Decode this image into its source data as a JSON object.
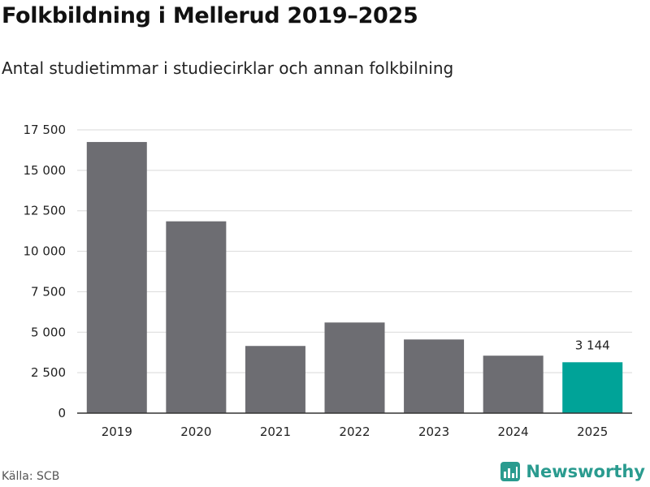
{
  "header": {
    "title": "Folkbildning i Mellerud 2019–2025",
    "subtitle": "Antal studietimmar i studiecirklar och annan folkbilning"
  },
  "footer": {
    "source": "Källa: SCB",
    "brand": "Newsworthy"
  },
  "colors": {
    "bar": "#6d6d72",
    "highlight": "#00a398",
    "grid": "#d9d9d9",
    "axis": "#333333",
    "brand": "#2a9b8f"
  },
  "chart_data": {
    "type": "bar",
    "title": "Folkbildning i Mellerud 2019–2025",
    "subtitle": "Antal studietimmar i studiecirklar och annan folkbilning",
    "xlabel": "",
    "ylabel": "",
    "categories": [
      "2019",
      "2020",
      "2021",
      "2022",
      "2023",
      "2024",
      "2025"
    ],
    "values": [
      16750,
      11850,
      4150,
      5600,
      4550,
      3550,
      3144
    ],
    "highlight_index": 6,
    "data_labels": [
      {
        "index": 6,
        "text": "3 144"
      }
    ],
    "ylim": [
      0,
      17500
    ],
    "yticks": [
      0,
      2500,
      5000,
      7500,
      10000,
      12500,
      15000,
      17500
    ],
    "ytick_labels": [
      "0",
      "2 500",
      "5 000",
      "7 500",
      "10 000",
      "12 500",
      "15 000",
      "17 500"
    ],
    "grid": true,
    "legend": "none"
  }
}
